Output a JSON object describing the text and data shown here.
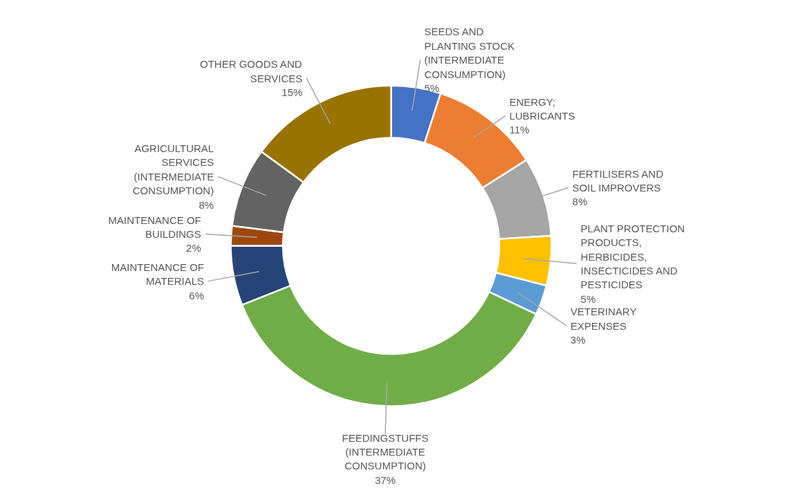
{
  "chart_data": {
    "type": "donut",
    "categories": [
      "SEEDS AND PLANTING STOCK (INTERMEDIATE CONSUMPTION)",
      "ENERGY; LUBRICANTS",
      "FERTILISERS AND SOIL IMPROVERS",
      "PLANT PROTECTION PRODUCTS, HERBICIDES, INSECTICIDES AND PESTICIDES",
      "VETERINARY EXPENSES",
      "FEEDINGSTUFFS (INTERMEDIATE CONSUMPTION)",
      "MAINTENANCE OF MATERIALS",
      "MAINTENANCE OF BUILDINGS",
      "AGRICULTURAL SERVICES (INTERMEDIATE CONSUMPTION)",
      "OTHER GOODS AND SERVICES"
    ],
    "values": [
      5,
      11,
      8,
      5,
      3,
      37,
      6,
      2,
      8,
      15
    ],
    "value_labels": [
      "5%",
      "11%",
      "8%",
      "5%",
      "3%",
      "37%",
      "6%",
      "2%",
      "8%",
      "15%"
    ],
    "colors": [
      "#4472c4",
      "#ed7d31",
      "#a5a5a5",
      "#ffc000",
      "#5b9bd5",
      "#70ad47",
      "#264478",
      "#9e480e",
      "#636363",
      "#997300"
    ]
  }
}
